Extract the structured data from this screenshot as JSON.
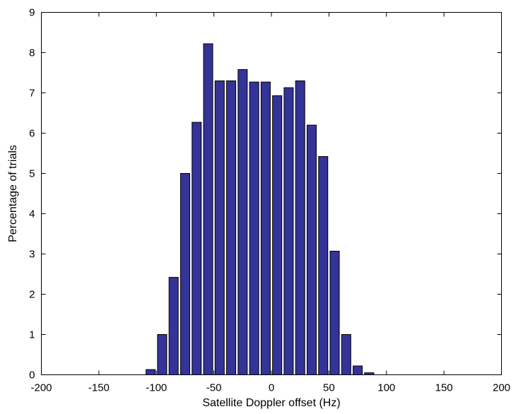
{
  "chart_data": {
    "type": "bar",
    "title": "",
    "xlabel": "Satellite Doppler offset (Hz)",
    "ylabel": "Percentage of trials",
    "xlim": [
      -200,
      200
    ],
    "ylim": [
      0,
      9
    ],
    "xticks": [
      -200,
      -150,
      -100,
      -50,
      0,
      50,
      100,
      150,
      200
    ],
    "yticks": [
      0,
      1,
      2,
      3,
      4,
      5,
      6,
      7,
      8,
      9
    ],
    "bar_width": 8,
    "grid": false,
    "bar_color": "#333399",
    "x": [
      -105,
      -95,
      -85,
      -75,
      -65,
      -55,
      -45,
      -35,
      -25,
      -15,
      -5,
      5,
      15,
      25,
      35,
      45,
      55,
      65,
      75,
      85,
      95,
      105
    ],
    "values": [
      0.13,
      1.0,
      2.42,
      5.0,
      6.27,
      8.22,
      7.3,
      7.3,
      7.58,
      7.27,
      7.27,
      6.93,
      7.13,
      7.3,
      6.2,
      5.42,
      3.07,
      1.0,
      0.22,
      0.05,
      0.0,
      0.0
    ]
  }
}
